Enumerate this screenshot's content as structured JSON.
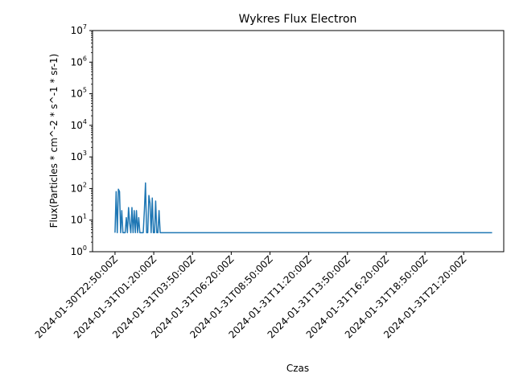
{
  "chart_data": {
    "type": "line",
    "title": "Wykres Flux Electron",
    "xlabel": "Czas",
    "ylabel": "Flux(Particles * cm^-2 * s^-1 * sr-1)",
    "yscale": "log",
    "ylim": [
      1,
      10000000
    ],
    "y_ticks": [
      {
        "value": 1,
        "base": "10",
        "exp": "0"
      },
      {
        "value": 10,
        "base": "10",
        "exp": "1"
      },
      {
        "value": 100,
        "base": "10",
        "exp": "2"
      },
      {
        "value": 1000,
        "base": "10",
        "exp": "3"
      },
      {
        "value": 10000,
        "base": "10",
        "exp": "4"
      },
      {
        "value": 100000,
        "base": "10",
        "exp": "5"
      },
      {
        "value": 1000000,
        "base": "10",
        "exp": "6"
      },
      {
        "value": 10000000,
        "base": "10",
        "exp": "7"
      }
    ],
    "xlim": [
      "2024-01-30T21:23:00Z",
      "2024-01-31T23:55:00Z"
    ],
    "x_ticks": [
      "2024-01-30T22:50:00Z",
      "2024-01-31T01:20:00Z",
      "2024-01-31T03:50:00Z",
      "2024-01-31T06:20:00Z",
      "2024-01-31T08:50:00Z",
      "2024-01-31T11:20:00Z",
      "2024-01-31T13:50:00Z",
      "2024-01-31T16:20:00Z",
      "2024-01-31T18:50:00Z",
      "2024-01-31T21:20:00Z"
    ],
    "grid": false,
    "line_color": "#1f77b4",
    "series_values": [
      4,
      80,
      4,
      95,
      80,
      4,
      20,
      4,
      4,
      4,
      12,
      4,
      25,
      8,
      4,
      25,
      4,
      20,
      4,
      20,
      4,
      12,
      4,
      4,
      4,
      4,
      20,
      150,
      4,
      4,
      60,
      35,
      4,
      50,
      4,
      4,
      40,
      4,
      4,
      20,
      4,
      4,
      4,
      4,
      4,
      4,
      4,
      4,
      4,
      4,
      4,
      4,
      4,
      4,
      4,
      4,
      4,
      4,
      4,
      4,
      4,
      4,
      4,
      4,
      4,
      4,
      4,
      4,
      4,
      4,
      4,
      4,
      4,
      4,
      4,
      4,
      4,
      4,
      4,
      4,
      4,
      4,
      4,
      4,
      4,
      4,
      4,
      4,
      4,
      4,
      4,
      4,
      4,
      4,
      4,
      4,
      4,
      4,
      4,
      4,
      4,
      4,
      4,
      4,
      4,
      4,
      4,
      4,
      4,
      4,
      4,
      4,
      4,
      4,
      4,
      4,
      4,
      4,
      4,
      4,
      4,
      4,
      4,
      4,
      4,
      4,
      4,
      4,
      4,
      4,
      4,
      4,
      4,
      4,
      4,
      4,
      4,
      4,
      4,
      4,
      4,
      4,
      4,
      4,
      4,
      4,
      4,
      4,
      4,
      4,
      4,
      4,
      4,
      4,
      4,
      4,
      4,
      4,
      4,
      4,
      4,
      4,
      4,
      4,
      4,
      4,
      4,
      4,
      4,
      4,
      4,
      4,
      4,
      4,
      4,
      4,
      4,
      4,
      4,
      4,
      4,
      4,
      4,
      4,
      4,
      4,
      4,
      4,
      4,
      4,
      4,
      4,
      4,
      4,
      4,
      4,
      4,
      4,
      4,
      4,
      4,
      4,
      4,
      4,
      4,
      4,
      4,
      4,
      4,
      4,
      4,
      4,
      4,
      4,
      4,
      4,
      4,
      4,
      4,
      4,
      4,
      4,
      4,
      4,
      4,
      4,
      4,
      4,
      4,
      4,
      4,
      4,
      4,
      4,
      4,
      4,
      4,
      4,
      4,
      4,
      4,
      4,
      4,
      4,
      4,
      4,
      4,
      4,
      4,
      4,
      4,
      4,
      4,
      4,
      4,
      4,
      4,
      4,
      4,
      4,
      4,
      4,
      4,
      4,
      4,
      4,
      4,
      4,
      4,
      4,
      4,
      4,
      4,
      4,
      4,
      4,
      4,
      4,
      4,
      4,
      4,
      4,
      4,
      4,
      4,
      4,
      4,
      4,
      4,
      4,
      4,
      4,
      4,
      4,
      4,
      4,
      4,
      4,
      4,
      4,
      4,
      4,
      4,
      4,
      4,
      4,
      4,
      4,
      4,
      4,
      4,
      4,
      4,
      4,
      4,
      4,
      4,
      4,
      4,
      4,
      4,
      4,
      4,
      4,
      4,
      4,
      4,
      4,
      4,
      4,
      4,
      4,
      4,
      4,
      4
    ]
  }
}
